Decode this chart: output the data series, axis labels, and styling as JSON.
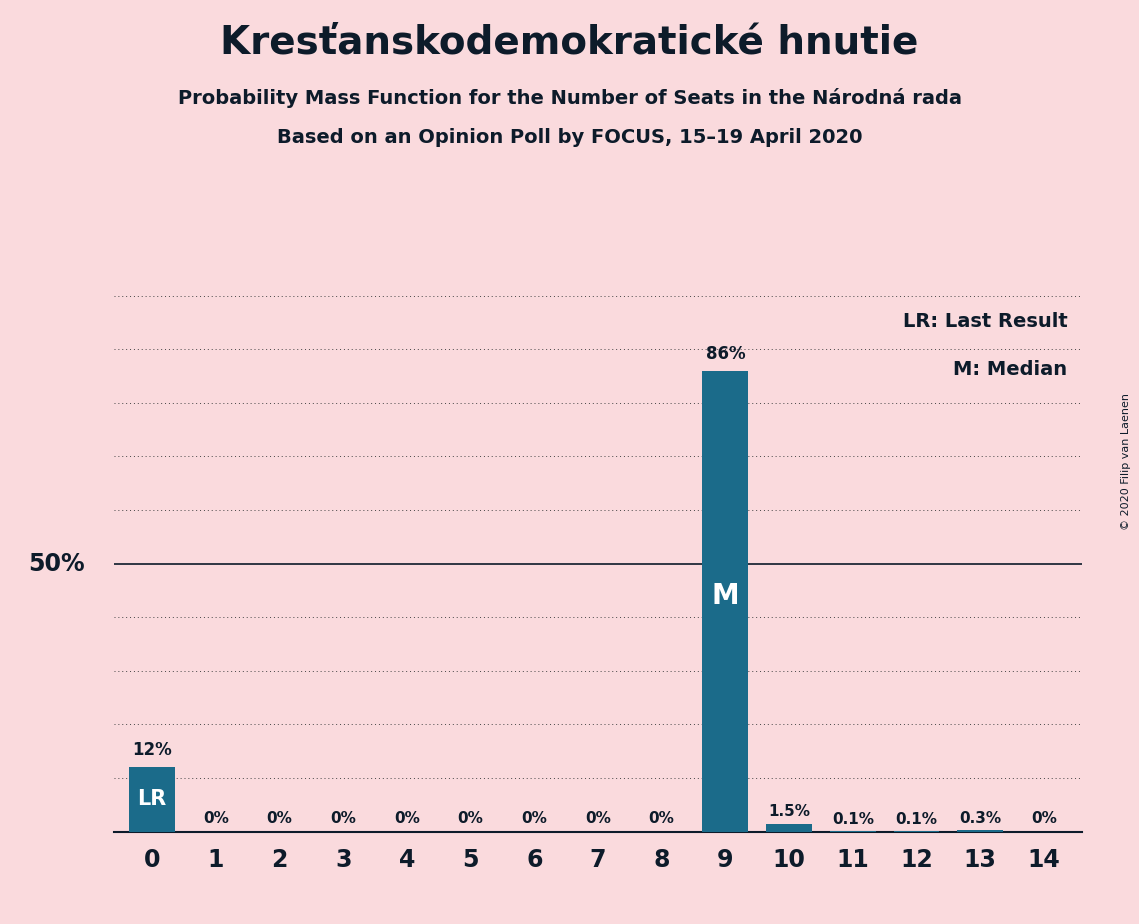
{
  "title": "Kresťanskodemokratické hnutie",
  "subtitle1": "Probability Mass Function for the Number of Seats in the Národná rada",
  "subtitle2": "Based on an Opinion Poll by FOCUS, 15–19 April 2020",
  "copyright": "© 2020 Filip van Laenen",
  "categories": [
    0,
    1,
    2,
    3,
    4,
    5,
    6,
    7,
    8,
    9,
    10,
    11,
    12,
    13,
    14
  ],
  "values": [
    12,
    0,
    0,
    0,
    0,
    0,
    0,
    0,
    0,
    86,
    1.5,
    0.1,
    0.1,
    0.3,
    0
  ],
  "bar_color": "#1B6B8A",
  "background_color": "#FADADD",
  "label_color": "#0D1B2A",
  "bar_labels": [
    "12%",
    "0%",
    "0%",
    "0%",
    "0%",
    "0%",
    "0%",
    "0%",
    "0%",
    "86%",
    "1.5%",
    "0.1%",
    "0.1%",
    "0.3%",
    "0%"
  ],
  "lr_bar_index": 0,
  "median_bar_index": 9,
  "legend_lr": "LR: Last Result",
  "legend_m": "M: Median",
  "fifty_pct_label": "50%",
  "ylim_max": 100
}
